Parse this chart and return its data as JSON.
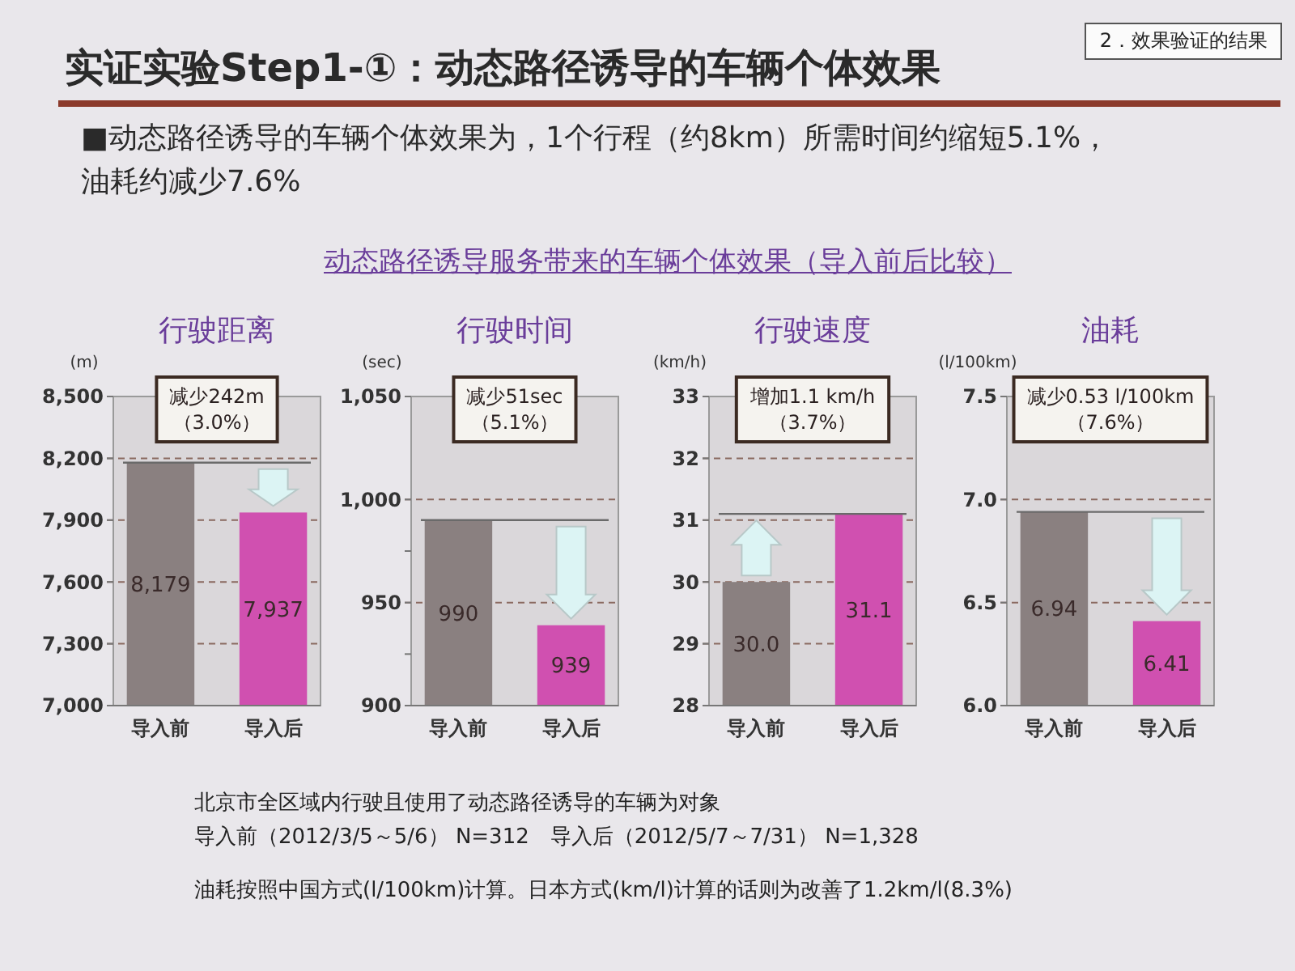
{
  "chart_data": [
    {
      "type": "other",
      "title": "实证实验Step1-①：动态路径诱导的车辆个体效果",
      "subtitle": "■动态路径诱导的车辆个体效果为，1个行程（约8km）所需时间约缩短5.1%，油耗约减少7.6%",
      "annotations": [
        "2．效果验证的结果",
        "动态路径诱导服务带来的车辆个体效果（导入前后比较）"
      ]
    },
    {
      "type": "bar",
      "title": "行驶距离",
      "ylabel": "(m)",
      "categories": [
        "导入前",
        "导入后"
      ],
      "values": [
        8179,
        7937
      ],
      "colors": [
        "#8a8080",
        "#d050b0"
      ],
      "value_labels": [
        "8,179",
        "7,937"
      ],
      "ylim": [
        7000,
        8500
      ],
      "yticks": [
        {
          "value": 7000,
          "label": "7,000"
        },
        {
          "value": 7300,
          "label": "7,300"
        },
        {
          "value": 7600,
          "label": "7,600"
        },
        {
          "value": 7900,
          "label": "7,900"
        },
        {
          "value": 8200,
          "label": "8,200"
        },
        {
          "value": 8500,
          "label": "8,500"
        }
      ],
      "grid": "y",
      "ref_lines": [
        {
          "axis": "y",
          "value": 8179
        }
      ],
      "annotations": [
        "减少242m",
        "（3.0%）"
      ]
    },
    {
      "type": "bar",
      "title": "行驶时间",
      "ylabel": "(sec)",
      "categories": [
        "导入前",
        "导入后"
      ],
      "values": [
        990,
        939
      ],
      "colors": [
        "#8a8080",
        "#d050b0"
      ],
      "data_labels": true,
      "ylim": [
        900,
        1050
      ],
      "yticks": [
        900,
        {
          "value": 925,
          "label": null
        },
        950,
        {
          "value": 975,
          "label": null
        },
        {
          "value": 1000,
          "label": "1,000"
        },
        {
          "value": 1050,
          "label": "1,050"
        }
      ],
      "grid": "y",
      "ref_lines": [
        {
          "axis": "y",
          "value": 990
        }
      ],
      "annotations": [
        "减少51sec",
        "（5.1%）"
      ]
    },
    {
      "type": "bar",
      "title": "行驶速度",
      "ylabel": "(km/h)",
      "categories": [
        "导入前",
        "导入后"
      ],
      "values": [
        30.0,
        31.1
      ],
      "colors": [
        "#8a8080",
        "#d050b0"
      ],
      "value_labels": [
        "30.0",
        "31.1"
      ],
      "ylim": [
        28,
        33
      ],
      "yticks": [
        28,
        29,
        30,
        31,
        32,
        33
      ],
      "grid": "y",
      "ref_lines": [
        {
          "axis": "y",
          "value": 31.1
        }
      ],
      "annotations": [
        "增加1.1 km/h",
        "（3.7%）"
      ]
    },
    {
      "type": "bar",
      "title": "油耗",
      "ylabel": "(l/100km)",
      "categories": [
        "导入前",
        "导入后"
      ],
      "values": [
        6.94,
        6.41
      ],
      "colors": [
        "#8a8080",
        "#d050b0"
      ],
      "data_labels": true,
      "ylim": [
        6.0,
        7.5
      ],
      "yticks": [
        {
          "value": 6,
          "label": "6.0"
        },
        {
          "value": 6.5,
          "label": "6.5"
        },
        {
          "value": 7,
          "label": "7.0"
        },
        {
          "value": 7.5,
          "label": "7.5"
        }
      ],
      "grid": "y",
      "ref_lines": [
        {
          "axis": "y",
          "value": 6.94
        }
      ],
      "annotations": [
        "减少0.53 l/100km",
        "（7.6%）"
      ]
    },
    {
      "type": "other",
      "annotations": [
        "北京市全区域内行驶且使用了动态路径诱导的车辆为对象",
        "导入前（2012/3/5～5/6） N=312　导入后（2012/5/7～7/31） N=1,328",
        "油耗按照中国方式(l/100km)计算。日本方式(km/l)计算的话则为改善了1.2km/l(8.3%)"
      ]
    }
  ]
}
